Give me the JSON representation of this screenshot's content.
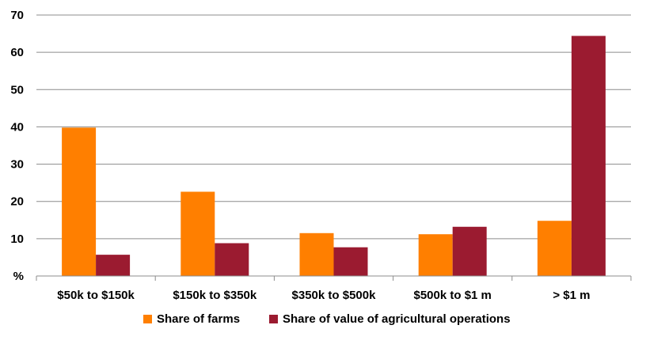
{
  "chart_data": {
    "type": "bar",
    "title": "",
    "xlabel": "",
    "ylabel": "",
    "ylim": [
      0,
      70
    ],
    "y_ticks": [
      {
        "value": 70,
        "label": "70"
      },
      {
        "value": 60,
        "label": "60"
      },
      {
        "value": 50,
        "label": "50"
      },
      {
        "value": 40,
        "label": "40"
      },
      {
        "value": 30,
        "label": "30"
      },
      {
        "value": 20,
        "label": "20"
      },
      {
        "value": 10,
        "label": "10"
      },
      {
        "value": 0,
        "label": "%"
      }
    ],
    "grid": true,
    "legend_position": "bottom",
    "categories": [
      "$50k to $150k",
      "$150k to $350k",
      "$350k to $500k",
      "$500k to $1 m",
      "> $1 m"
    ],
    "series": [
      {
        "name": "Share of farms",
        "color": "#ff7f00",
        "values": [
          39.8,
          22.6,
          11.5,
          11.2,
          14.8
        ]
      },
      {
        "name": "Share of value of agricultural operations",
        "color": "#9b1b30",
        "values": [
          5.7,
          8.8,
          7.7,
          13.2,
          64.4
        ]
      }
    ]
  }
}
